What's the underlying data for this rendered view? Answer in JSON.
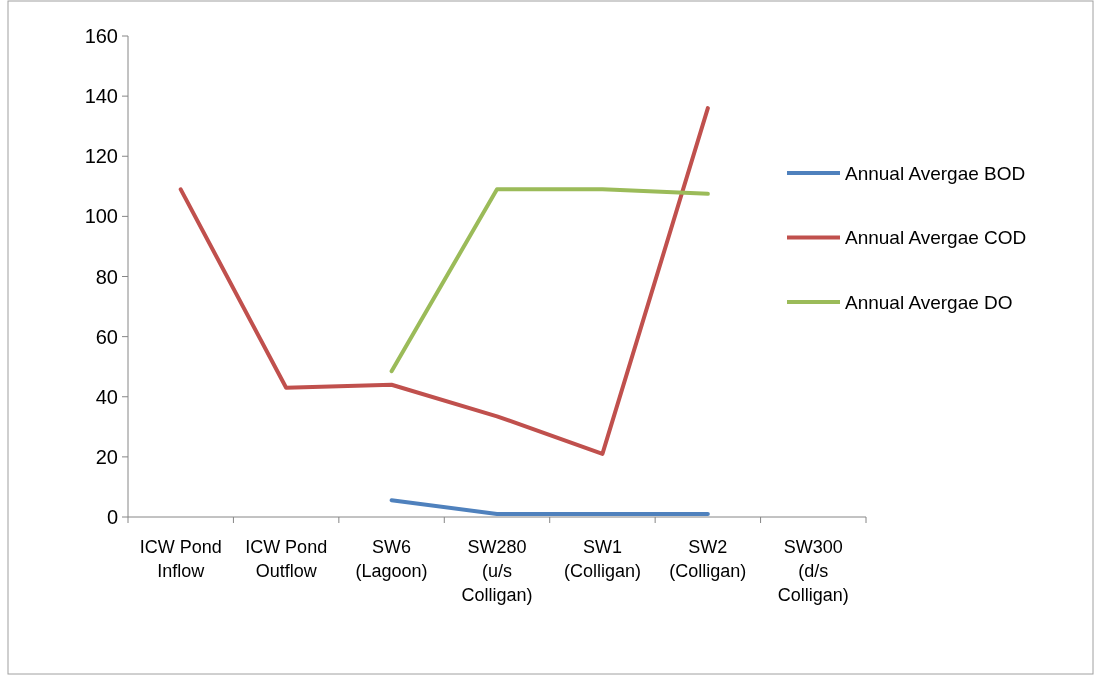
{
  "chart_data": {
    "type": "line",
    "categories": [
      "ICW Pond Inflow",
      "ICW Pond Outflow",
      "SW6 (Lagoon)",
      "SW280 (u/s Colligan)",
      "SW1 (Colligan)",
      "SW2 (Colligan)",
      "SW300 (d/s Colligan)"
    ],
    "series": [
      {
        "name": "Annual Avergae BOD",
        "color": "#4f81bd",
        "values": [
          null,
          null,
          5.6,
          1,
          1,
          1,
          null
        ]
      },
      {
        "name": "Annual Avergae COD",
        "color": "#c0504d",
        "values": [
          109,
          43,
          44,
          33.5,
          21,
          136,
          null
        ]
      },
      {
        "name": "Annual Avergae DO",
        "color": "#9bbb59",
        "values": [
          null,
          null,
          48.5,
          109,
          109,
          107.5,
          null
        ]
      }
    ],
    "ylim": [
      0,
      160
    ],
    "yticks": [
      0,
      20,
      40,
      60,
      80,
      100,
      120,
      140,
      160
    ],
    "grid": false,
    "legend": "right",
    "marker": "none",
    "line_style": "solid"
  }
}
